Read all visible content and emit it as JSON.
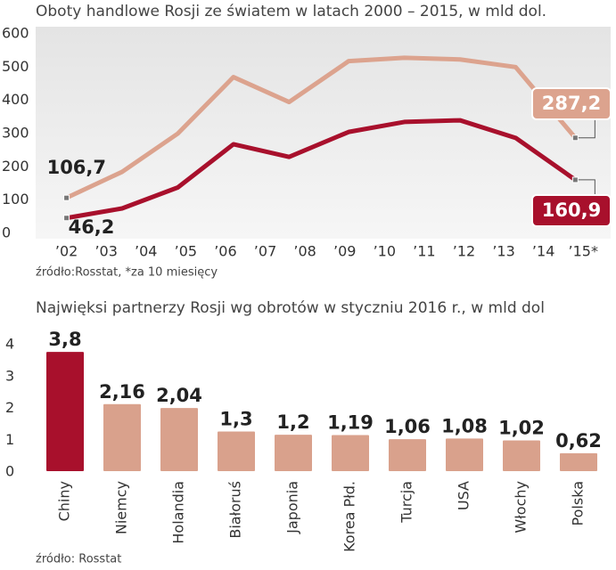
{
  "chart_data": [
    {
      "type": "line",
      "title": "Oboty handlowe Rosji ze światem w latach 2000 – 2015, w mld dol.",
      "x": [
        2002,
        2003.4,
        2004.8,
        2006.2,
        2007.6,
        2009.1,
        2010.5,
        2011.9,
        2013.3,
        2014.8
      ],
      "xlim": [
        2001,
        2015.6
      ],
      "xticks": [
        {
          "value": 2002,
          "label": "’02"
        },
        {
          "value": 2003,
          "label": "’03"
        },
        {
          "value": 2004,
          "label": "’04"
        },
        {
          "value": 2005,
          "label": "’05"
        },
        {
          "value": 2006,
          "label": "’06"
        },
        {
          "value": 2007,
          "label": "’07"
        },
        {
          "value": 2008,
          "label": "’08"
        },
        {
          "value": 2009,
          "label": "’09"
        },
        {
          "value": 2010,
          "label": "’10"
        },
        {
          "value": 2011,
          "label": "’11"
        },
        {
          "value": 2012,
          "label": "’12"
        },
        {
          "value": 2013,
          "label": "’13"
        },
        {
          "value": 2014,
          "label": "’14"
        },
        {
          "value": 2015,
          "label": "’15*"
        }
      ],
      "ylim": [
        0,
        600
      ],
      "yticks": [
        0,
        100,
        200,
        300,
        400,
        500,
        600
      ],
      "series": [
        {
          "color": "#dca38e",
          "values": [
            106.7,
            185,
            300,
            470,
            395,
            518,
            528,
            523,
            500,
            287.2
          ],
          "value_labels": [
            "106,7",
            null,
            null,
            null,
            null,
            null,
            null,
            null,
            null,
            "287,2"
          ]
        },
        {
          "color": "#a8102c",
          "values": [
            46.2,
            75,
            138,
            268,
            230,
            305,
            335,
            340,
            287,
            160.9
          ],
          "value_labels": [
            "46,2",
            null,
            null,
            null,
            null,
            null,
            null,
            null,
            null,
            "160,9"
          ]
        }
      ],
      "source": "źródło:Rosstat, *za 10 miesięcy"
    },
    {
      "type": "bar",
      "title": "Najwięksi partnerzy Rosji wg obrotów w styczniu 2016 r., w mld dol",
      "categories": [
        "Chiny",
        "Niemcy",
        "Holandia",
        "Białoruś",
        "Japonia",
        "Korea Płd.",
        "Turcja",
        "USA",
        "Włochy",
        "Polska"
      ],
      "values": [
        3.8,
        2.16,
        2.04,
        1.3,
        1.2,
        1.19,
        1.06,
        1.08,
        1.02,
        0.62
      ],
      "value_labels": [
        "3,8",
        "2,16",
        "2,04",
        "1,3",
        "1,2",
        "1,19",
        "1,06",
        "1,08",
        "1,02",
        "0,62"
      ],
      "colors": [
        "#a8102c",
        "#d9a18c",
        "#d9a18c",
        "#d9a18c",
        "#d9a18c",
        "#d9a18c",
        "#d9a18c",
        "#d9a18c",
        "#d9a18c",
        "#d9a18c"
      ],
      "ylim": [
        0,
        4
      ],
      "yticks": [
        0,
        1,
        2,
        3,
        4
      ],
      "source": "źródło: Rosstat"
    }
  ]
}
